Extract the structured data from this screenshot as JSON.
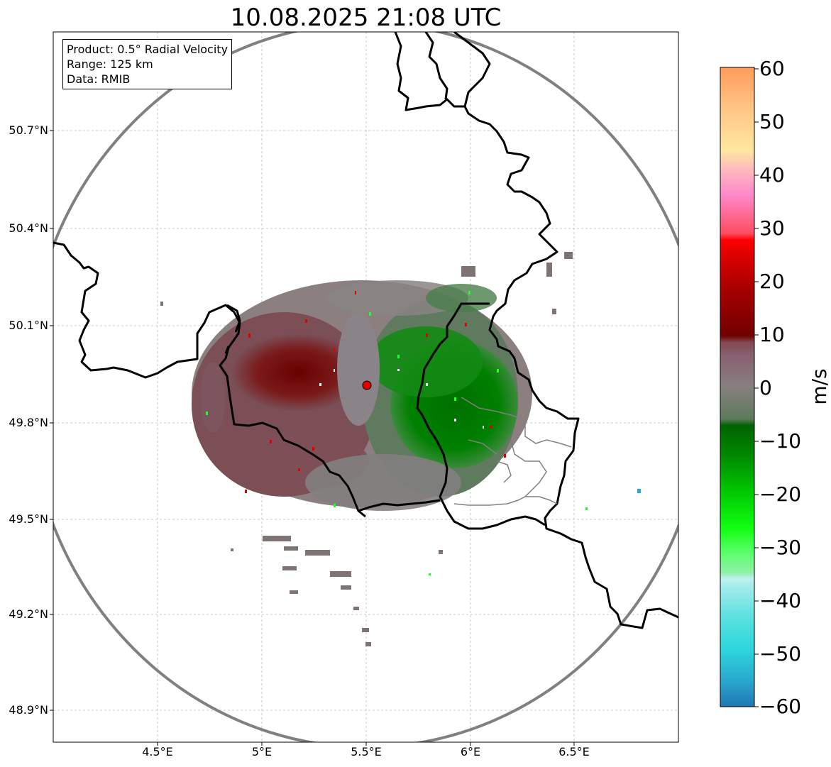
{
  "title": "10.08.2025 21:08 UTC",
  "info": {
    "product": "Product: 0.5° Radial Velocity",
    "range": "Range: 125 km",
    "data": "Data: RMIB"
  },
  "axes": {
    "lat_labels": [
      "50.7°N",
      "50.4°N",
      "50.1°N",
      "49.8°N",
      "49.5°N",
      "49.2°N",
      "48.9°N"
    ],
    "lon_labels": [
      "4.5°E",
      "5°E",
      "5.5°E",
      "6°E",
      "6.5°E"
    ]
  },
  "colorbar": {
    "label": "m/s",
    "ticks": [
      "60",
      "50",
      "40",
      "30",
      "20",
      "10",
      "0",
      "−10",
      "−20",
      "−30",
      "−40",
      "−50",
      "−60"
    ],
    "range": [
      -60,
      60
    ],
    "colors": [
      "#1f77b4",
      "#2aa6cc",
      "#2dd6dc",
      "#5ae0e0",
      "#7fe6e6",
      "#a8ecec",
      "#c0f0f0",
      "#90f0a8",
      "#5cff6c",
      "#22ff22",
      "#00e000",
      "#00c400",
      "#00a800",
      "#008c00",
      "#006c00",
      "#5c7a5c",
      "#7a847a",
      "#8a7880",
      "#886070",
      "#824850",
      "#760000",
      "#8c0000",
      "#a40000",
      "#bc0000",
      "#d40000",
      "#ee0000",
      "#ff0000",
      "#ff4c60",
      "#ff6a80",
      "#ff88c8",
      "#ffa0c8",
      "#ffb8c0",
      "#ffd8a8",
      "#ffe8a0",
      "#ffc888",
      "#ffb070",
      "#ff9c5c"
    ]
  },
  "radar": {
    "site_marker": "radar-site",
    "range_ring_color": "#808080"
  }
}
